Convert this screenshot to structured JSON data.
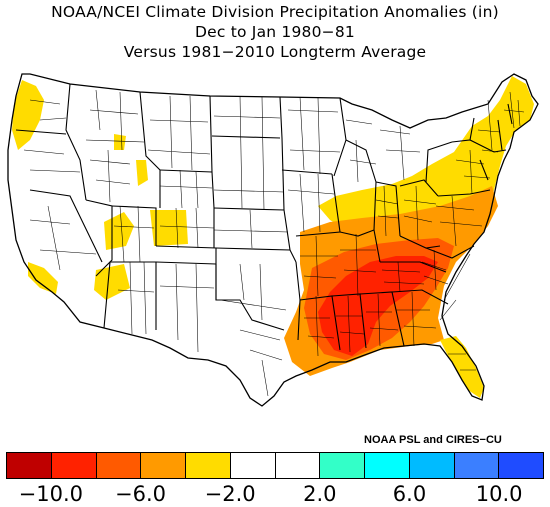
{
  "title": {
    "line1": "NOAA/NCEI Climate Division Precipitation Anomalies (in)",
    "line2": "Dec to Jan 1980−81",
    "line3": "Versus 1981−2010 Longterm Average"
  },
  "credit": "NOAA PSL and CIRES−CU",
  "legend": {
    "colors": [
      "#bf0000",
      "#ff2200",
      "#ff5a00",
      "#ff9a00",
      "#ffdc00",
      "#ffffff",
      "#ffffff",
      "#33ffc8",
      "#00ffff",
      "#00bbff",
      "#3b7fff",
      "#1f4cff"
    ],
    "labels": [
      "−10.0",
      "−6.0",
      "−2.0",
      "2.0",
      "6.0",
      "10.0"
    ]
  },
  "map": {
    "outline_color": "#000000",
    "region_colors": {
      "gulf_core": "#ff2200",
      "southeast": "#ff5a00",
      "mid_south": "#ff9a00",
      "northeast": "#ffdc00",
      "west_spots": "#ffdc00"
    }
  }
}
